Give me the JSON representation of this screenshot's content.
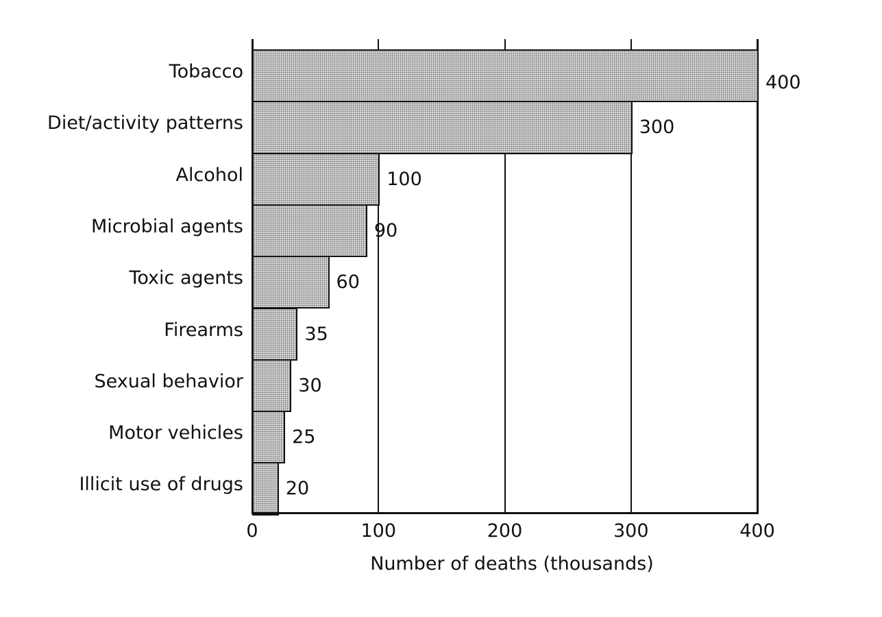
{
  "chart_data": {
    "type": "bar",
    "orientation": "horizontal",
    "title": "",
    "xlabel": "Number of deaths (thousands)",
    "ylabel": "",
    "xlim": [
      0,
      400
    ],
    "xticks": [
      "0",
      "100",
      "200",
      "300",
      "400"
    ],
    "grid": true,
    "legend": null,
    "categories": [
      "Tobacco",
      "Diet/activity patterns",
      "Alcohol",
      "Microbial agents",
      "Toxic agents",
      "Firearms",
      "Sexual behavior",
      "Motor vehicles",
      "Illicit use of drugs"
    ],
    "values": [
      400,
      300,
      100,
      90,
      60,
      35,
      30,
      25,
      20
    ],
    "value_labels": [
      "400",
      "300",
      "100",
      "90",
      "60",
      "35",
      "30",
      "25",
      "20"
    ],
    "bar_fill": "stippled gray",
    "colors": {
      "bar_fill": "#d8d8d8",
      "stipple": "#7a7a7a",
      "line": "#111111"
    }
  }
}
